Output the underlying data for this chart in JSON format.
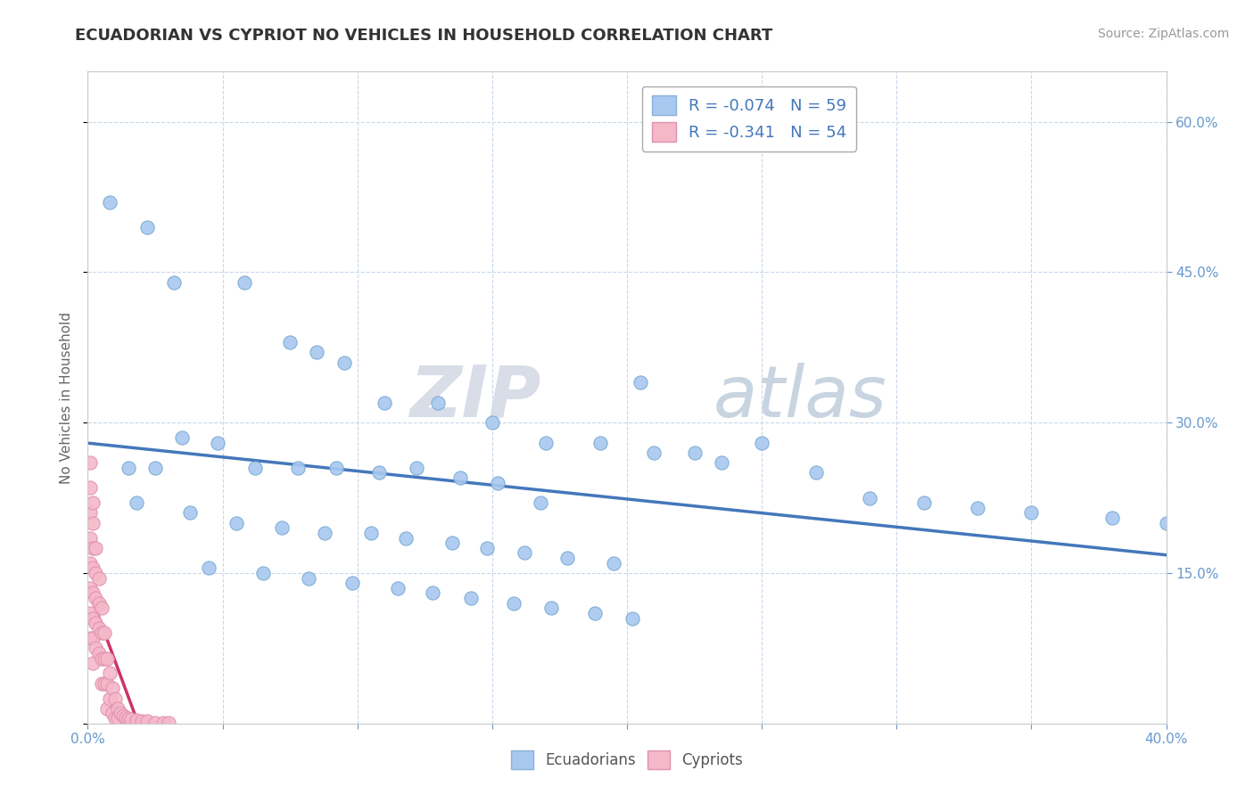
{
  "title": "ECUADORIAN VS CYPRIOT NO VEHICLES IN HOUSEHOLD CORRELATION CHART",
  "source": "Source: ZipAtlas.com",
  "ylabel": "No Vehicles in Household",
  "xlim": [
    0.0,
    0.4
  ],
  "ylim": [
    0.0,
    0.65
  ],
  "watermark_zip": "ZIP",
  "watermark_atlas": "atlas",
  "legend_r_ecuadorian": "R = -0.074",
  "legend_n_ecuadorian": "N = 59",
  "legend_r_cypriot": "R = -0.341",
  "legend_n_cypriot": "N = 54",
  "ecuadorian_color": "#a8c8f0",
  "cypriot_color": "#f5b8c8",
  "ecuadorian_edge": "#7aaad0",
  "cypriot_edge": "#e090b0",
  "trendline_ecuadorian_color": "#4477bb",
  "trendline_cypriot_color": "#cc3366",
  "background_color": "#ffffff",
  "tick_color": "#6699cc",
  "grid_color": "#c8d8ec",
  "ecuadorians_x": [
    0.008,
    0.022,
    0.032,
    0.058,
    0.075,
    0.085,
    0.095,
    0.11,
    0.13,
    0.15,
    0.17,
    0.19,
    0.205,
    0.21,
    0.225,
    0.235,
    0.25,
    0.27,
    0.29,
    0.31,
    0.33,
    0.35,
    0.38,
    0.4,
    0.015,
    0.025,
    0.035,
    0.048,
    0.062,
    0.078,
    0.092,
    0.108,
    0.122,
    0.138,
    0.152,
    0.168,
    0.018,
    0.038,
    0.055,
    0.072,
    0.088,
    0.105,
    0.118,
    0.135,
    0.148,
    0.162,
    0.178,
    0.195,
    0.045,
    0.065,
    0.082,
    0.098,
    0.115,
    0.128,
    0.142,
    0.158,
    0.172,
    0.188,
    0.202
  ],
  "ecuadorians_y": [
    0.52,
    0.495,
    0.44,
    0.44,
    0.38,
    0.37,
    0.36,
    0.32,
    0.32,
    0.3,
    0.28,
    0.28,
    0.34,
    0.27,
    0.27,
    0.26,
    0.28,
    0.25,
    0.225,
    0.22,
    0.215,
    0.21,
    0.205,
    0.2,
    0.255,
    0.255,
    0.285,
    0.28,
    0.255,
    0.255,
    0.255,
    0.25,
    0.255,
    0.245,
    0.24,
    0.22,
    0.22,
    0.21,
    0.2,
    0.195,
    0.19,
    0.19,
    0.185,
    0.18,
    0.175,
    0.17,
    0.165,
    0.16,
    0.155,
    0.15,
    0.145,
    0.14,
    0.135,
    0.13,
    0.125,
    0.12,
    0.115,
    0.11,
    0.105
  ],
  "cypriots_x": [
    0.001,
    0.001,
    0.001,
    0.001,
    0.001,
    0.001,
    0.001,
    0.001,
    0.002,
    0.002,
    0.002,
    0.002,
    0.002,
    0.002,
    0.002,
    0.002,
    0.003,
    0.003,
    0.003,
    0.003,
    0.003,
    0.004,
    0.004,
    0.004,
    0.004,
    0.005,
    0.005,
    0.005,
    0.005,
    0.006,
    0.006,
    0.006,
    0.007,
    0.007,
    0.007,
    0.008,
    0.008,
    0.009,
    0.009,
    0.01,
    0.01,
    0.011,
    0.011,
    0.012,
    0.013,
    0.014,
    0.015,
    0.016,
    0.018,
    0.02,
    0.022,
    0.025,
    0.028,
    0.03
  ],
  "cypriots_y": [
    0.26,
    0.235,
    0.21,
    0.185,
    0.16,
    0.135,
    0.11,
    0.085,
    0.22,
    0.2,
    0.175,
    0.155,
    0.13,
    0.105,
    0.085,
    0.06,
    0.175,
    0.15,
    0.125,
    0.1,
    0.075,
    0.145,
    0.12,
    0.095,
    0.07,
    0.115,
    0.09,
    0.065,
    0.04,
    0.09,
    0.065,
    0.04,
    0.065,
    0.04,
    0.015,
    0.05,
    0.025,
    0.035,
    0.01,
    0.025,
    0.005,
    0.015,
    0.005,
    0.01,
    0.008,
    0.006,
    0.005,
    0.004,
    0.003,
    0.002,
    0.002,
    0.001,
    0.001,
    0.001
  ]
}
